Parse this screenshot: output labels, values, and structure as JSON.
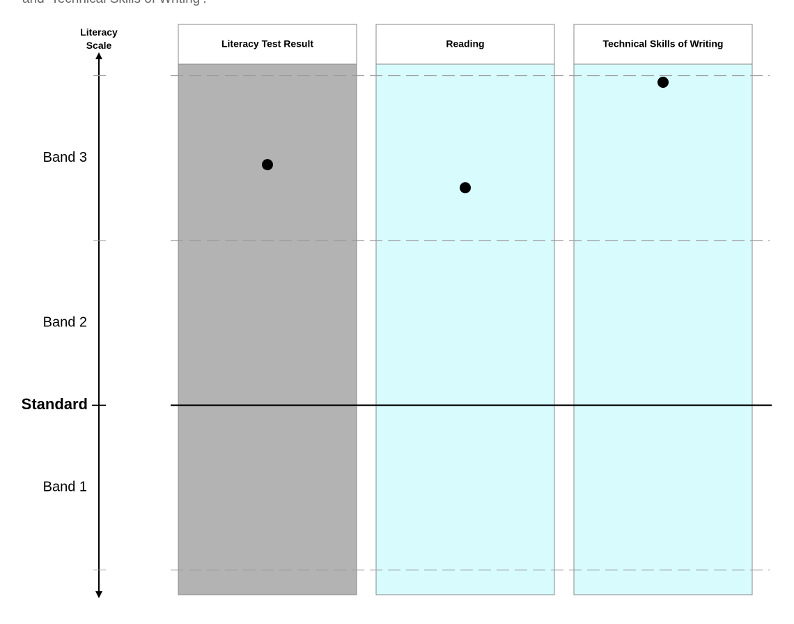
{
  "caption": "and ‘Technical Skills of Writing’.",
  "chart_data": {
    "type": "dot",
    "y_label": "Literacy Scale",
    "categories": [
      "Literacy Test Result",
      "Reading",
      "Technical Skills of Writing"
    ],
    "values": [
      2.46,
      2.32,
      2.96
    ],
    "color": "#000000",
    "column_colors": [
      "#b3b3b3",
      "#d8fbfd",
      "#d8fbfd"
    ],
    "ylim": [
      -0.15,
      3.07
    ],
    "yticks": [
      {
        "value": 0.5,
        "label": "Band 1"
      },
      {
        "value": 1.5,
        "label": "Band 2"
      },
      {
        "value": 2.5,
        "label": "Band 3"
      }
    ],
    "grid_lines": [
      0,
      2,
      3
    ],
    "reference_line": {
      "value": 1,
      "label": "Standard"
    }
  }
}
